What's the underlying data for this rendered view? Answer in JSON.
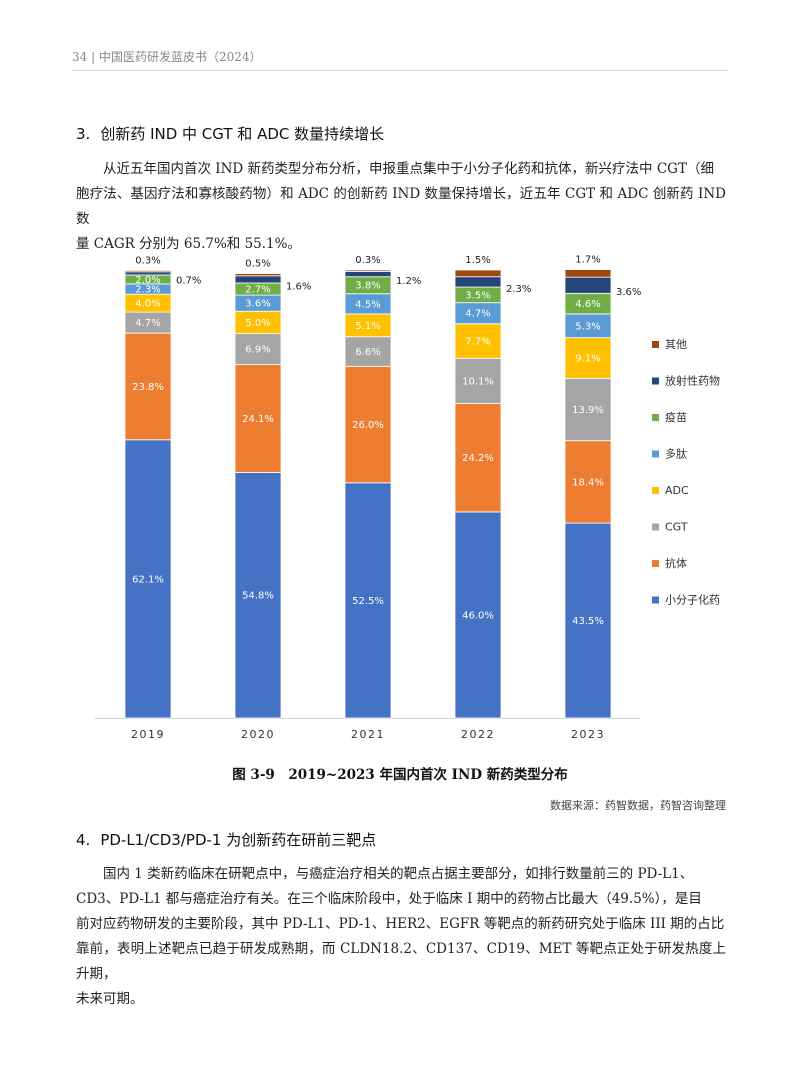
{
  "running_header": "34 | 中国医药研发蓝皮书（2024）",
  "section3": {
    "number": "3.",
    "title": "创新药 IND 中 CGT 和 ADC 数量持续增长",
    "paragraph_lines": [
      "从近五年国内首次 IND 新药类型分布分析，申报重点集中于小分子化药和抗体，新兴疗法中 CGT（细",
      "胞疗法、基因疗法和寡核酸药物）和 ADC 的创新药 IND 数量保持增长，近五年 CGT 和 ADC 创新药 IND 数",
      "量 CAGR 分别为 65.7%和 55.1%。"
    ]
  },
  "figure": {
    "caption": "图 3-9　2019~2023 年国内首次 IND 新药类型分布",
    "source": "数据来源：药智数据，药智咨询整理"
  },
  "chart_data": {
    "type": "bar",
    "stacked": true,
    "percent_stacked": true,
    "categories": [
      "2019",
      "2020",
      "2021",
      "2022",
      "2023"
    ],
    "ylim": [
      0,
      100
    ],
    "grid": false,
    "legend_position": "right",
    "value_suffix": "%",
    "series": [
      {
        "name": "小分子化药",
        "color": "#4472C4",
        "values": [
          62.1,
          54.8,
          52.5,
          46.0,
          43.5
        ],
        "label_color": "#ffffff"
      },
      {
        "name": "抗体",
        "color": "#ED7D31",
        "values": [
          23.8,
          24.1,
          26.0,
          24.2,
          18.4
        ],
        "label_color": "#ffffff"
      },
      {
        "name": "CGT",
        "color": "#A5A5A5",
        "values": [
          4.7,
          6.9,
          6.6,
          10.1,
          13.9
        ],
        "label_color": "#ffffff"
      },
      {
        "name": "ADC",
        "color": "#FFC000",
        "values": [
          4.0,
          5.0,
          5.1,
          7.7,
          9.1
        ],
        "label_color": "#ffffff"
      },
      {
        "name": "多肽",
        "color": "#5B9BD5",
        "values": [
          2.3,
          3.6,
          4.5,
          4.7,
          5.3
        ],
        "label_color": "#ffffff"
      },
      {
        "name": "疫苗",
        "color": "#70AD47",
        "values": [
          2.0,
          2.7,
          3.8,
          3.5,
          4.6
        ],
        "label_color": "#ffffff"
      },
      {
        "name": "放射性药物",
        "color": "#264478",
        "values": [
          0.7,
          1.6,
          1.2,
          2.3,
          3.6
        ],
        "label_color": "#222222"
      },
      {
        "name": "其他",
        "color": "#9E480E",
        "values": [
          0.3,
          0.5,
          0.3,
          1.5,
          1.7
        ],
        "label_color": "#222222"
      }
    ]
  },
  "section4": {
    "number": "4.",
    "title": "PD-L1/CD3/PD-1 为创新药在研前三靶点",
    "paragraph_lines": [
      "国内 1 类新药临床在研靶点中，与癌症治疗相关的靶点占据主要部分，如排行数量前三的 PD-L1、",
      "CD3、PD-L1 都与癌症治疗有关。在三个临床阶段中，处于临床 I 期中的药物占比最大（49.5%），是目",
      "前对应药物研发的主要阶段，其中 PD-L1、PD-1、HER2、EGFR 等靶点的新药研究处于临床 III 期的占比",
      "靠前，表明上述靶点已趋于研发成熟期，而 CLDN18.2、CD137、CD19、MET 等靶点正处于研发热度上升期，",
      "未来可期。"
    ]
  }
}
